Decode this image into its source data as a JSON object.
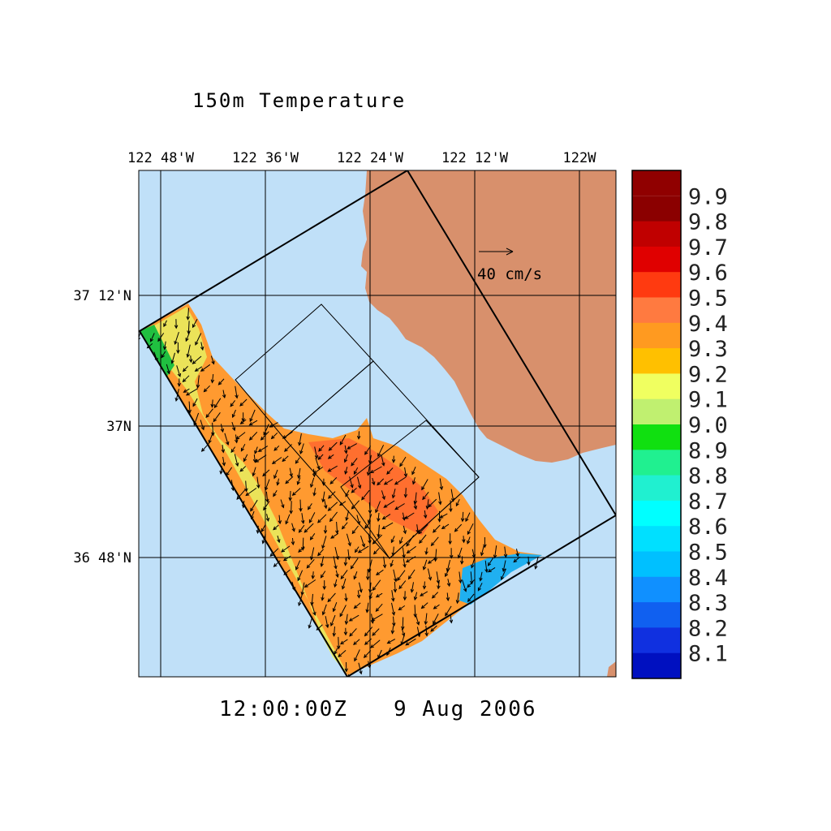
{
  "title": "150m Temperature",
  "timestamp": {
    "time": "12:00:00Z",
    "date": "9 Aug 2006"
  },
  "scale_arrow_label": "40 cm/s",
  "lon_ticks": [
    "122 48'W",
    "122 36'W",
    "122 24'W",
    "122 12'W",
    "122W"
  ],
  "lat_ticks": [
    "37 12'N",
    "37N",
    "36 48'N"
  ],
  "colorbar": {
    "labels": [
      "9.9",
      "9.8",
      "9.7",
      "9.6",
      "9.5",
      "9.4",
      "9.3",
      "9.2",
      "9.1",
      "9.0",
      "8.9",
      "8.8",
      "8.7",
      "8.6",
      "8.5",
      "8.4",
      "8.3",
      "8.2",
      "8.1"
    ],
    "colors": [
      "#8b0000",
      "#c00000",
      "#e00000",
      "#ff3a10",
      "#ff7a40",
      "#ff9a20",
      "#ffc000",
      "#f0ff60",
      "#c0f070",
      "#10e010",
      "#20f090",
      "#20f0d0",
      "#00ffff",
      "#00e0ff",
      "#00c0ff",
      "#1090ff",
      "#1060f0",
      "#1030e0",
      "#0010c0"
    ]
  },
  "colors": {
    "ocean": "#c0e0f8",
    "land": "#d8906c",
    "grid": "#000000"
  }
}
